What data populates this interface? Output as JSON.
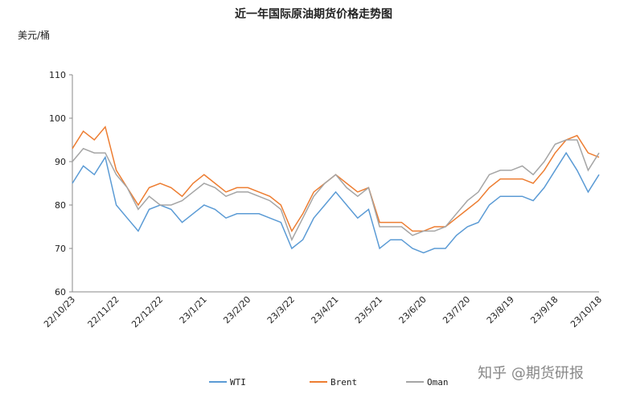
{
  "chart_data": {
    "type": "line",
    "title": "近一年国际原油期货价格走势图",
    "y_label": "美元/桶",
    "watermark": "知乎 @期货研报",
    "categories": [
      "22/10/23",
      null,
      null,
      null,
      "22/11/22",
      null,
      null,
      null,
      "22/12/22",
      null,
      null,
      null,
      "23/1/21",
      null,
      null,
      null,
      "23/2/20",
      null,
      null,
      null,
      "23/3/22",
      null,
      null,
      null,
      "23/4/21",
      null,
      null,
      null,
      "23/5/21",
      null,
      null,
      null,
      "23/6/20",
      null,
      null,
      null,
      "23/7/20",
      null,
      null,
      null,
      "23/8/19",
      null,
      null,
      null,
      "23/9/18",
      null,
      null,
      null,
      "23/10/18"
    ],
    "series": [
      {
        "name": "WTI",
        "color": "#5b9bd5",
        "values": [
          85,
          89,
          87,
          91,
          80,
          77,
          74,
          79,
          80,
          79,
          76,
          78,
          80,
          79,
          77,
          78,
          78,
          78,
          77,
          76,
          70,
          72,
          77,
          80,
          83,
          80,
          77,
          79,
          70,
          72,
          72,
          70,
          69,
          70,
          70,
          73,
          75,
          76,
          80,
          82,
          82,
          82,
          81,
          84,
          88,
          92,
          88,
          83,
          87
        ]
      },
      {
        "name": "Brent",
        "color": "#ed7d31",
        "values": [
          93,
          97,
          95,
          98,
          88,
          84,
          80,
          84,
          85,
          84,
          82,
          85,
          87,
          85,
          83,
          84,
          84,
          83,
          82,
          80,
          74,
          78,
          83,
          85,
          87,
          85,
          83,
          84,
          76,
          76,
          76,
          74,
          74,
          75,
          75,
          77,
          79,
          81,
          84,
          86,
          86,
          86,
          85,
          88,
          92,
          95,
          96,
          92,
          91
        ]
      },
      {
        "name": "Oman",
        "color": "#a5a5a5",
        "values": [
          90,
          93,
          92,
          92,
          87,
          84,
          79,
          82,
          80,
          80,
          81,
          83,
          85,
          84,
          82,
          83,
          83,
          82,
          81,
          79,
          72,
          77,
          82,
          85,
          87,
          84,
          82,
          84,
          75,
          75,
          75,
          73,
          74,
          74,
          75,
          78,
          81,
          83,
          87,
          88,
          88,
          89,
          87,
          90,
          94,
          95,
          95,
          88,
          92
        ]
      }
    ],
    "ylim": [
      60,
      110
    ],
    "yticks": [
      60,
      70,
      80,
      90,
      100,
      110
    ],
    "grid": false
  }
}
